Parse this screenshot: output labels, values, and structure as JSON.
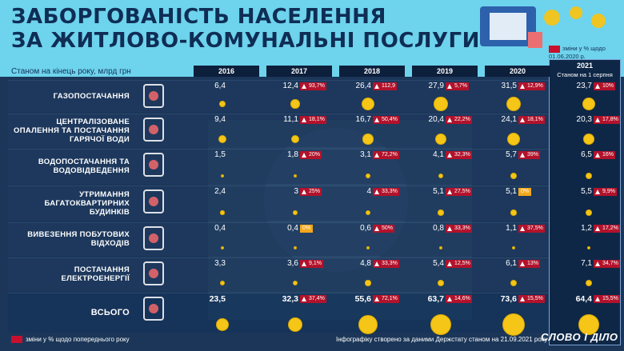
{
  "title_line1": "ЗАБОРГОВАНІСТЬ НАСЕЛЕННЯ",
  "title_line2": "ЗА ЖИТЛОВО-КОМУНАЛЬНІ ПОСЛУГИ",
  "subtitle": "Станом на кінець року, млрд грн",
  "note_top": "зміни у % щодо 01.06.2020 р.",
  "year_2021": "2021",
  "year_2021_sub": "Станом на 1 серпня",
  "footer_left": "зміни у % щодо попереднього року",
  "footer_source": "Інфографіку створено за даними Держстату станом на 21.09.2021 року",
  "logo": "СЛОВО І ДІЛО",
  "colors": {
    "accent_red": "#c8102e",
    "zero_orange": "#f3a81b",
    "bubble": "#f5c518",
    "bg_top": "#6ed3ec"
  },
  "chart_data": {
    "type": "table",
    "columns": [
      "2016",
      "2017",
      "2018",
      "2019",
      "2020",
      "2021"
    ],
    "rows": [
      {
        "name": "ГАЗОПОСТАЧАННЯ",
        "icon": "flame-icon",
        "values": [
          6.4,
          12.4,
          26.4,
          27.9,
          31.5,
          23.7
        ],
        "labels": [
          "6,4",
          "12,4",
          "26,4",
          "27,9",
          "31,5",
          "23,7"
        ],
        "changes": [
          null,
          "93,7%",
          "112,9",
          "5,7%",
          "12,9%",
          "10%"
        ]
      },
      {
        "name": "ЦЕНТРАЛІЗОВАНЕ ОПАЛЕННЯ ТА ПОСТАЧАННЯ ГАРЯЧОЇ ВОДИ",
        "icon": "radiator-icon",
        "values": [
          9.4,
          11.1,
          16.7,
          20.4,
          24.1,
          20.3
        ],
        "labels": [
          "9,4",
          "11,1",
          "16,7",
          "20,4",
          "24,1",
          "20,3"
        ],
        "changes": [
          null,
          "18,1%",
          "50,4%",
          "22,2%",
          "18,1%",
          "17,8%"
        ]
      },
      {
        "name": "ВОДОПОСТАЧАННЯ ТА ВОДОВІДВЕДЕННЯ",
        "icon": "water-tap-icon",
        "values": [
          1.5,
          1.8,
          3.1,
          4.1,
          5.7,
          6.5
        ],
        "labels": [
          "1,5",
          "1,8",
          "3,1",
          "4,1",
          "5,7",
          "6,5"
        ],
        "changes": [
          null,
          "20%",
          "72,2%",
          "32,3%",
          "39%",
          "16%"
        ]
      },
      {
        "name": "УТРИМАННЯ БАГАТОКВАРТИРНИХ БУДИНКІВ",
        "icon": "buildings-icon",
        "values": [
          2.4,
          3,
          4,
          5.1,
          5.1,
          5.5
        ],
        "labels": [
          "2,4",
          "3",
          "4",
          "5,1",
          "5,1",
          "5,5"
        ],
        "changes": [
          null,
          "25%",
          "33,3%",
          "27,5%",
          "0%",
          "9,9%"
        ]
      },
      {
        "name": "ВИВЕЗЕННЯ ПОБУТОВИХ ВІДХОДІВ",
        "icon": "trash-bin-icon",
        "values": [
          0.4,
          0.4,
          0.6,
          0.8,
          1.1,
          1.2
        ],
        "labels": [
          "0,4",
          "0,4",
          "0,6",
          "0,8",
          "1,1",
          "1,2"
        ],
        "changes": [
          null,
          "0%",
          "50%",
          "33,3%",
          "37,5%",
          "17,2%"
        ]
      },
      {
        "name": "ПОСТАЧАННЯ ЕЛЕКТРОЕНЕРГІЇ",
        "icon": "lightbulb-icon",
        "values": [
          3.3,
          3.6,
          4.8,
          5.4,
          6.1,
          7.1
        ],
        "labels": [
          "3,3",
          "3,6",
          "4,8",
          "5,4",
          "6,1",
          "7,1"
        ],
        "changes": [
          null,
          "9,1%",
          "33,3%",
          "12,5%",
          "13%",
          "34,7%"
        ]
      },
      {
        "name": "ВСЬОГО",
        "icon": "money-icon",
        "values": [
          23.5,
          32.3,
          55.6,
          63.7,
          73.6,
          64.4
        ],
        "labels": [
          "23,5",
          "32,3",
          "55,6",
          "63,7",
          "73,6",
          "64,4"
        ],
        "changes": [
          null,
          "37,4%",
          "72,1%",
          "14,6%",
          "15,5%",
          "15,5%"
        ]
      }
    ]
  }
}
